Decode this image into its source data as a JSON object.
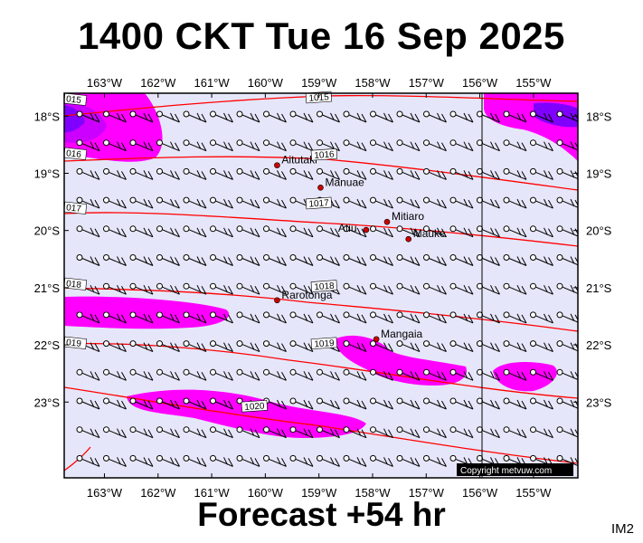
{
  "title": "1400 CKT Tue 16 Sep 2025",
  "footer": "Forecast +54 hr",
  "corner_tag": "IM2",
  "copyright": "Copyright metvuw.com",
  "colors": {
    "background": "#e6e6fa",
    "isobar": "#ff0000",
    "rain_light": "#ff00ff",
    "rain_medium": "#cc00ff",
    "rain_heavy": "#8000ff",
    "town": "#cc0000"
  },
  "longitude_labels": [
    "163°W",
    "162°W",
    "161°W",
    "160°W",
    "159°W",
    "158°W",
    "157°W",
    "156°W",
    "155°W"
  ],
  "latitude_labels": [
    "18°S",
    "19°S",
    "20°S",
    "21°S",
    "22°S",
    "23°S"
  ],
  "places": [
    {
      "name": "Aitutaki",
      "lon": -159.78,
      "lat": -18.86
    },
    {
      "name": "Manuae",
      "lon": -158.97,
      "lat": -19.25
    },
    {
      "name": "Atiu",
      "lon": -158.12,
      "lat": -19.99
    },
    {
      "name": "Mitiaro",
      "lon": -157.73,
      "lat": -19.85
    },
    {
      "name": "Mauke",
      "lon": -157.33,
      "lat": -20.15
    },
    {
      "name": "Rarotonga",
      "lon": -159.78,
      "lat": -21.22
    },
    {
      "name": "Mangaia",
      "lon": -157.93,
      "lat": -21.9
    }
  ],
  "isobars": [
    {
      "label": "1015",
      "label_lon": -159.0,
      "label_lat": -17.6
    },
    {
      "label": "1016",
      "label_lon": -158.9,
      "label_lat": -18.6
    },
    {
      "label": "1017",
      "label_lon": -159.0,
      "label_lat": -19.45
    },
    {
      "label": "1018",
      "label_lon": -158.9,
      "label_lat": -20.9
    },
    {
      "label": "1019",
      "label_lon": -158.9,
      "label_lat": -21.9
    },
    {
      "label": "1020",
      "label_lon": -160.2,
      "label_lat": -23.0
    }
  ],
  "edge_labels": [
    "015",
    "016",
    "017",
    "018",
    "019"
  ]
}
